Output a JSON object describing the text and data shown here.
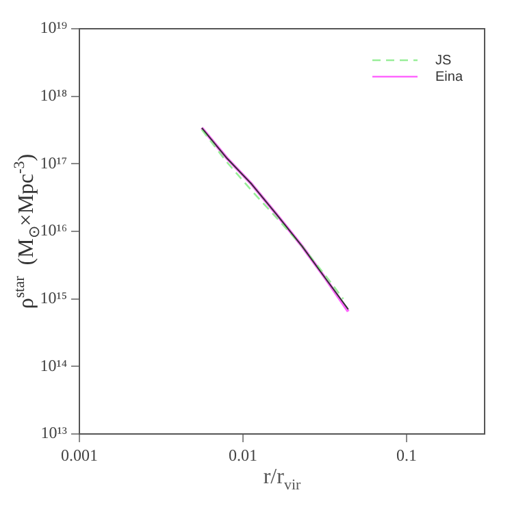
{
  "chart_data": {
    "type": "line",
    "xlabel": "r/r$_{vir}$",
    "ylabel": "ρ$^{star}$  (M$_{⊙}$×Mpc$^{-3}$)",
    "log": "xy",
    "xlim": [
      0.001,
      0.3
    ],
    "xticks": [
      0.001,
      0.01,
      0.1
    ],
    "ylim": [
      10000000000000.0,
      1e+19
    ],
    "yticks": [
      {
        "value": 10000000000000.0,
        "label": "10¹³"
      },
      {
        "value": 100000000000000.0,
        "label": "10¹⁴"
      },
      {
        "value": 1000000000000000.0,
        "label": "10¹⁵"
      },
      {
        "value": 1e+16,
        "label": "10¹⁶"
      },
      {
        "value": 1e+17,
        "label": "10¹⁷"
      },
      {
        "value": 1e+18,
        "label": "10¹⁸"
      },
      {
        "value": 1e+19,
        "label": "10¹⁹"
      }
    ],
    "grid": false,
    "legend": "top right",
    "marker": "none",
    "series": [
      {
        "color": "#333333",
        "line_style": "solid",
        "x": [
          0.0056,
          0.008,
          0.0113,
          0.016,
          0.023,
          0.032,
          0.044
        ],
        "values": [
          3.4e+17,
          1.2e+17,
          5e+16,
          1.8e+16,
          6000000000000000.0,
          2000000000000000.0,
          700000000000000.0
        ]
      },
      {
        "name": "JS",
        "color": "#99ee99",
        "line_style": "dashed",
        "x": [
          0.0056,
          0.008,
          0.0113,
          0.016,
          0.023,
          0.032,
          0.041
        ],
        "values": [
          3.2e+17,
          1.05e+17,
          4e+16,
          1.6e+16,
          6000000000000000.0,
          2200000000000000.0,
          1000000000000000.0
        ]
      },
      {
        "name": "Eina",
        "color": "#ff66ff",
        "line_style": "solid",
        "x": [
          0.0056,
          0.008,
          0.0113,
          0.016,
          0.023,
          0.032,
          0.044
        ],
        "values": [
          3.4e+17,
          1.2e+17,
          5e+16,
          1.8e+16,
          6000000000000000.0,
          2000000000000000.0,
          650000000000000.0
        ]
      }
    ]
  }
}
